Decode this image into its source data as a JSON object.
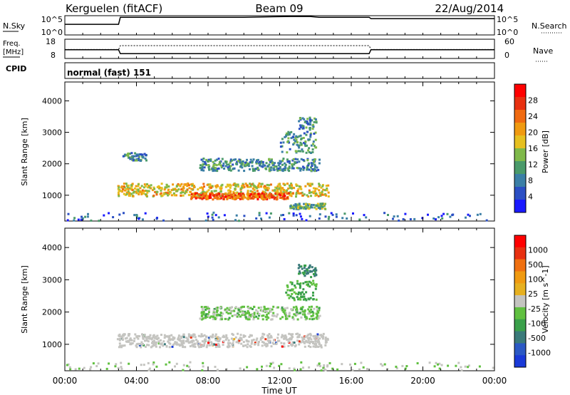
{
  "header": {
    "station": "Kerguelen (fitACF)",
    "beam": "Beam 09",
    "date": "22/Aug/2014"
  },
  "strip_labels": {
    "nsky": "N.Sky",
    "nsky_ticks": [
      "10^5",
      "10^0"
    ],
    "nsearch": "N.Search",
    "nsearch_ticks": [
      "10^5",
      "10^0"
    ],
    "freq": "Freq.",
    "freq_unit": "[MHz]",
    "freq_ticks": [
      "18",
      "8"
    ],
    "nave": "Nave",
    "nave_ticks": [
      "60",
      "0"
    ],
    "cpid": "CPID",
    "cpid_value": "normal (fast) 151"
  },
  "colors": {
    "power_scale": [
      "#1a1aff",
      "#2b4fc4",
      "#3b7fa6",
      "#4a9a6a",
      "#7fb94a",
      "#e6c020",
      "#f09a10",
      "#f06a10",
      "#e83010",
      "#ff0000"
    ],
    "velocity_scale": [
      "#1a3ad8",
      "#2b59c4",
      "#3a7a7a",
      "#3aa04a",
      "#60c040",
      "#c4c4c0",
      "#e6b020",
      "#f09a10",
      "#f07010",
      "#e83010",
      "#ff0000"
    ],
    "ground_scatter": "#c4c4c0"
  },
  "chart_data": [
    {
      "type": "line",
      "panel": "N.Sky / N.Search",
      "x": [
        0,
        3,
        3.1,
        10,
        12.6,
        13.7,
        14.2,
        17,
        17.1,
        24
      ],
      "series": [
        {
          "name": "N.Sky",
          "values": [
            0.55,
            0.55,
            0.92,
            0.92,
            0.96,
            0.96,
            0.92,
            0.92,
            0.85,
            0.85
          ]
        }
      ]
    },
    {
      "type": "line",
      "panel": "Freq. / Nave",
      "x": [
        0,
        3,
        3.1,
        17,
        17.1,
        24
      ],
      "series": [
        {
          "name": "Freq.",
          "values": [
            12.5,
            12.5,
            10.5,
            10.5,
            12.5,
            12.5
          ]
        },
        {
          "name": "Nave",
          "values": [
            28,
            28,
            40,
            40,
            28,
            28
          ]
        }
      ]
    },
    {
      "type": "heatmap",
      "title": "Power",
      "xlabel": "Time UT",
      "ylabel": "Slant Range [km]",
      "xlim": [
        0,
        24
      ],
      "ylim": [
        180,
        4600
      ],
      "x_ticks": [
        "00:00",
        "04:00",
        "08:00",
        "12:00",
        "16:00",
        "20:00",
        "00:00"
      ],
      "y_ticks": [
        1000,
        2000,
        3000,
        4000
      ],
      "colorbar": {
        "label": "Power [dB]",
        "ticks": [
          "28",
          "24",
          "20",
          "16",
          "12",
          "8",
          "4"
        ],
        "range": [
          0,
          30
        ]
      },
      "regions": [
        {
          "t0": 2.9,
          "t1": 14.7,
          "r_center": 1200,
          "r_width": 420,
          "value": 17
        },
        {
          "t0": 7.0,
          "t1": 12.5,
          "r_center": 1000,
          "r_width": 200,
          "value": 23
        },
        {
          "t0": 3.2,
          "t1": 4.5,
          "r_center": 2250,
          "r_width": 250,
          "value": 8
        },
        {
          "t0": 7.5,
          "t1": 14.2,
          "r_center": 2000,
          "r_width": 400,
          "value": 9
        },
        {
          "t0": 12.0,
          "t1": 14.0,
          "r_center": 2700,
          "r_width": 700,
          "value": 9
        },
        {
          "t0": 13.0,
          "t1": 14.0,
          "r_center": 3300,
          "r_width": 400,
          "value": 8
        },
        {
          "t0": 12.5,
          "t1": 14.5,
          "r_center": 680,
          "r_width": 180,
          "value": 12
        },
        {
          "t0": 0.0,
          "t1": 24.0,
          "r_center": 350,
          "r_width": 260,
          "value": 6
        }
      ]
    },
    {
      "type": "heatmap",
      "title": "Velocity",
      "xlabel": "Time UT",
      "ylabel": "Slant Range [km]",
      "xlim": [
        0,
        24
      ],
      "ylim": [
        180,
        4600
      ],
      "x_ticks": [
        "00:00",
        "04:00",
        "08:00",
        "12:00",
        "16:00",
        "20:00",
        "00:00"
      ],
      "y_ticks": [
        1000,
        2000,
        3000,
        4000
      ],
      "colorbar": {
        "label": "Velocity [m s^-1]",
        "ticks": [
          "1000",
          "500",
          "100",
          "25",
          "-25",
          "-100",
          "-500",
          "-1000"
        ],
        "range": [
          -1000,
          1000
        ]
      },
      "regions": [
        {
          "t0": 2.9,
          "t1": 14.7,
          "r_center": 1150,
          "r_width": 420,
          "value": 0
        },
        {
          "t0": 12.3,
          "t1": 14.0,
          "r_center": 2700,
          "r_width": 600,
          "value": -300
        },
        {
          "t0": 13.0,
          "t1": 14.0,
          "r_center": 3300,
          "r_width": 400,
          "value": -500
        },
        {
          "t0": 7.5,
          "t1": 14.2,
          "r_center": 2000,
          "r_width": 400,
          "value": -150
        },
        {
          "t0": 0.0,
          "t1": 24.0,
          "r_center": 350,
          "r_width": 260,
          "value": -80
        }
      ]
    }
  ]
}
